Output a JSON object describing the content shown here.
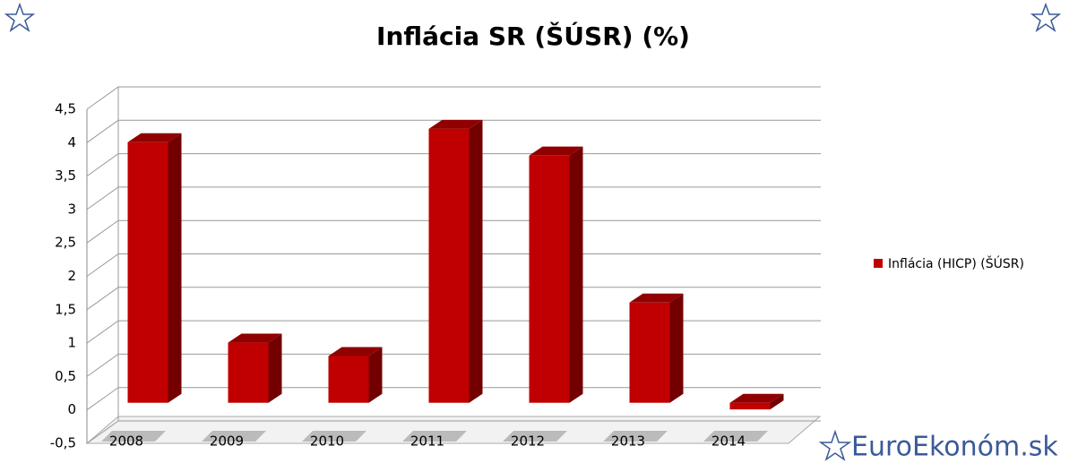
{
  "chart_data": {
    "type": "bar",
    "title": "Inflácia SR (ŠÚSR) (%)",
    "categories": [
      "2008",
      "2009",
      "2010",
      "2011",
      "2012",
      "2013",
      "2014"
    ],
    "series": [
      {
        "name": "Inflácia (HICP) (ŠÚSR)",
        "color": "#c00000",
        "values": [
          3.9,
          0.9,
          0.7,
          4.1,
          3.7,
          1.5,
          -0.1
        ]
      }
    ],
    "ylim": [
      -0.5,
      4.5
    ],
    "yticks": [
      {
        "value": -0.5,
        "label": "-0,5"
      },
      0,
      {
        "value": 0.5,
        "label": "0,5"
      },
      1,
      {
        "value": 1.5,
        "label": "1,5"
      },
      2,
      {
        "value": 2.5,
        "label": "2,5"
      },
      3,
      {
        "value": 3.5,
        "label": "3,5"
      },
      4,
      {
        "value": 4.5,
        "label": "4,5"
      }
    ],
    "grid": true,
    "legend": "right"
  },
  "watermark": "EuroEkonóm.sk"
}
